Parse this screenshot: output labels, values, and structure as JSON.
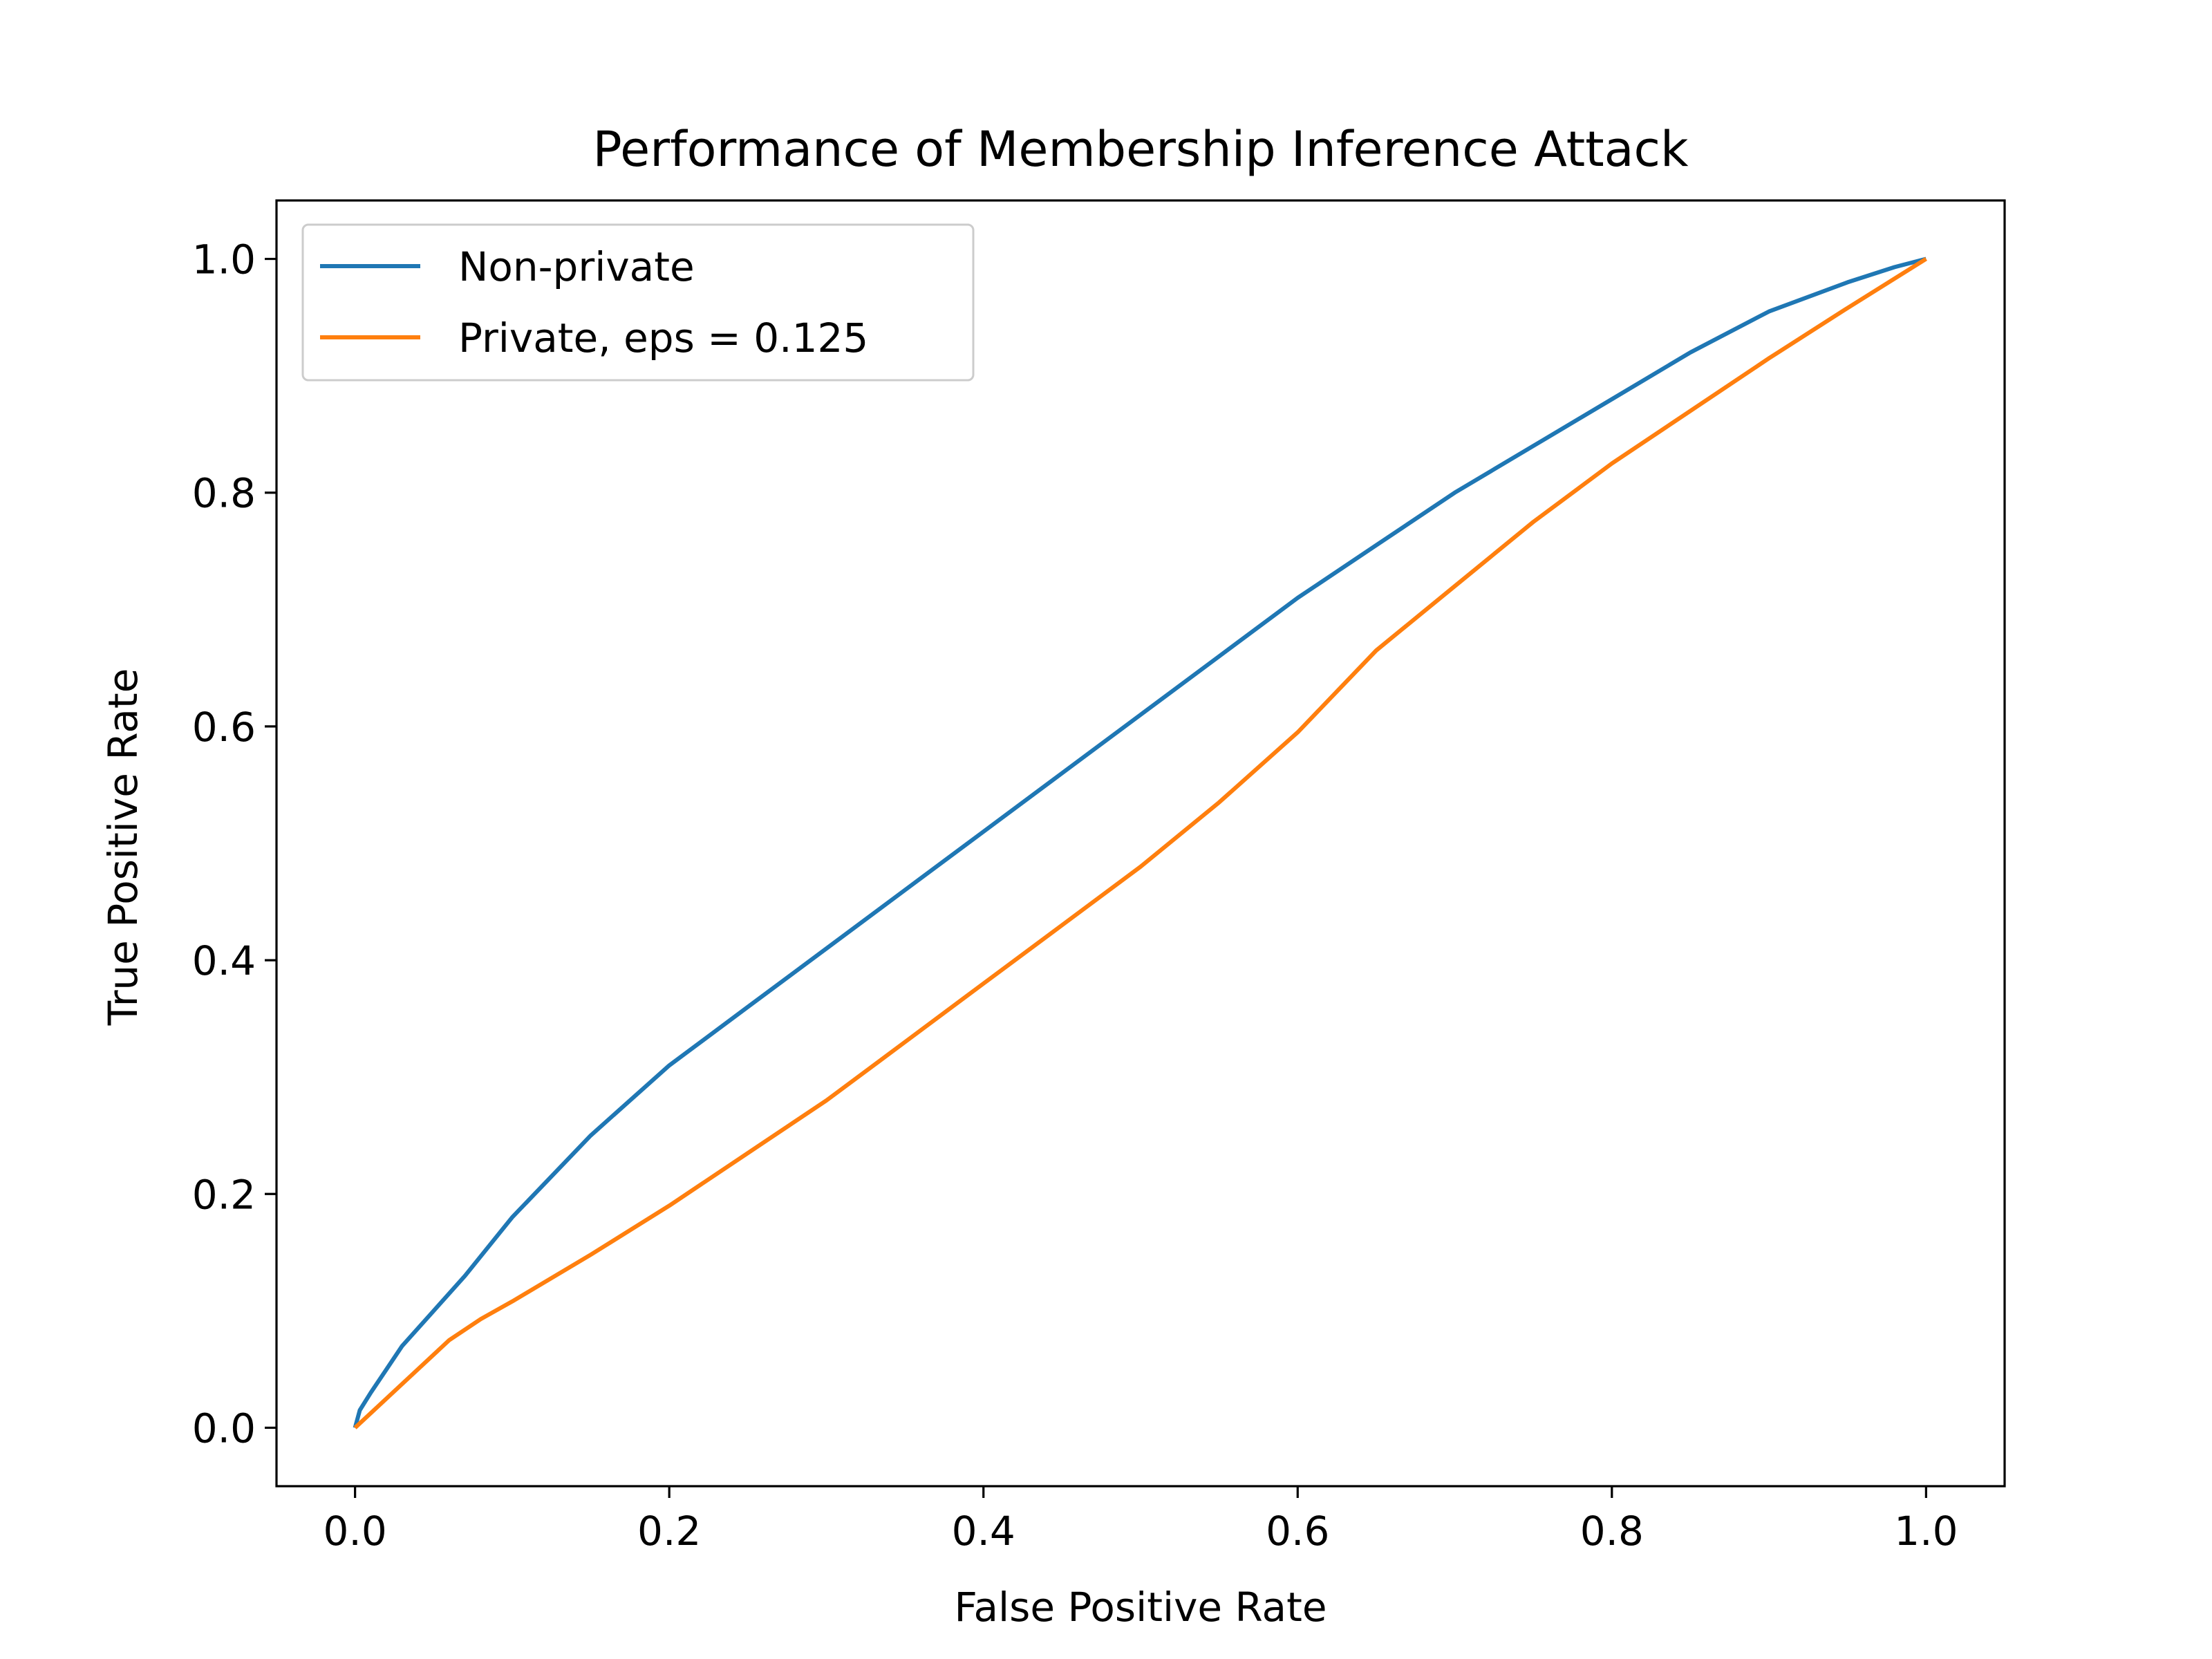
{
  "chart_data": {
    "type": "line",
    "title": "Performance of Membership Inference Attack",
    "xlabel": "False Positive Rate",
    "ylabel": "True Positive Rate",
    "xlim": [
      -0.05,
      1.05
    ],
    "ylim": [
      -0.05,
      1.05
    ],
    "xticks": [
      "0.0",
      "0.2",
      "0.4",
      "0.6",
      "0.8",
      "1.0"
    ],
    "yticks": [
      "0.0",
      "0.2",
      "0.4",
      "0.6",
      "0.8",
      "1.0"
    ],
    "grid": false,
    "legend_position": "top-left",
    "series": [
      {
        "name": "Non-private",
        "color": "#1f77b4",
        "points": [
          [
            0.0,
            0.0
          ],
          [
            0.003,
            0.015
          ],
          [
            0.01,
            0.03
          ],
          [
            0.02,
            0.05
          ],
          [
            0.03,
            0.07
          ],
          [
            0.05,
            0.1
          ],
          [
            0.07,
            0.13
          ],
          [
            0.1,
            0.18
          ],
          [
            0.15,
            0.25
          ],
          [
            0.2,
            0.31
          ],
          [
            0.25,
            0.36
          ],
          [
            0.3,
            0.41
          ],
          [
            0.35,
            0.46
          ],
          [
            0.4,
            0.51
          ],
          [
            0.45,
            0.56
          ],
          [
            0.5,
            0.61
          ],
          [
            0.55,
            0.66
          ],
          [
            0.6,
            0.71
          ],
          [
            0.65,
            0.755
          ],
          [
            0.7,
            0.8
          ],
          [
            0.75,
            0.84
          ],
          [
            0.8,
            0.88
          ],
          [
            0.85,
            0.92
          ],
          [
            0.9,
            0.955
          ],
          [
            0.95,
            0.98
          ],
          [
            0.98,
            0.993
          ],
          [
            1.0,
            1.0
          ]
        ]
      },
      {
        "name": "Private, eps = 0.125",
        "color": "#ff7f0e",
        "points": [
          [
            0.0,
            0.0
          ],
          [
            0.02,
            0.025
          ],
          [
            0.04,
            0.05
          ],
          [
            0.06,
            0.075
          ],
          [
            0.08,
            0.093
          ],
          [
            0.1,
            0.108
          ],
          [
            0.15,
            0.148
          ],
          [
            0.2,
            0.19
          ],
          [
            0.25,
            0.235
          ],
          [
            0.3,
            0.28
          ],
          [
            0.35,
            0.33
          ],
          [
            0.4,
            0.38
          ],
          [
            0.45,
            0.43
          ],
          [
            0.5,
            0.48
          ],
          [
            0.55,
            0.535
          ],
          [
            0.6,
            0.595
          ],
          [
            0.65,
            0.665
          ],
          [
            0.7,
            0.72
          ],
          [
            0.75,
            0.775
          ],
          [
            0.8,
            0.825
          ],
          [
            0.85,
            0.87
          ],
          [
            0.9,
            0.915
          ],
          [
            0.95,
            0.958
          ],
          [
            1.0,
            1.0
          ]
        ]
      }
    ]
  }
}
